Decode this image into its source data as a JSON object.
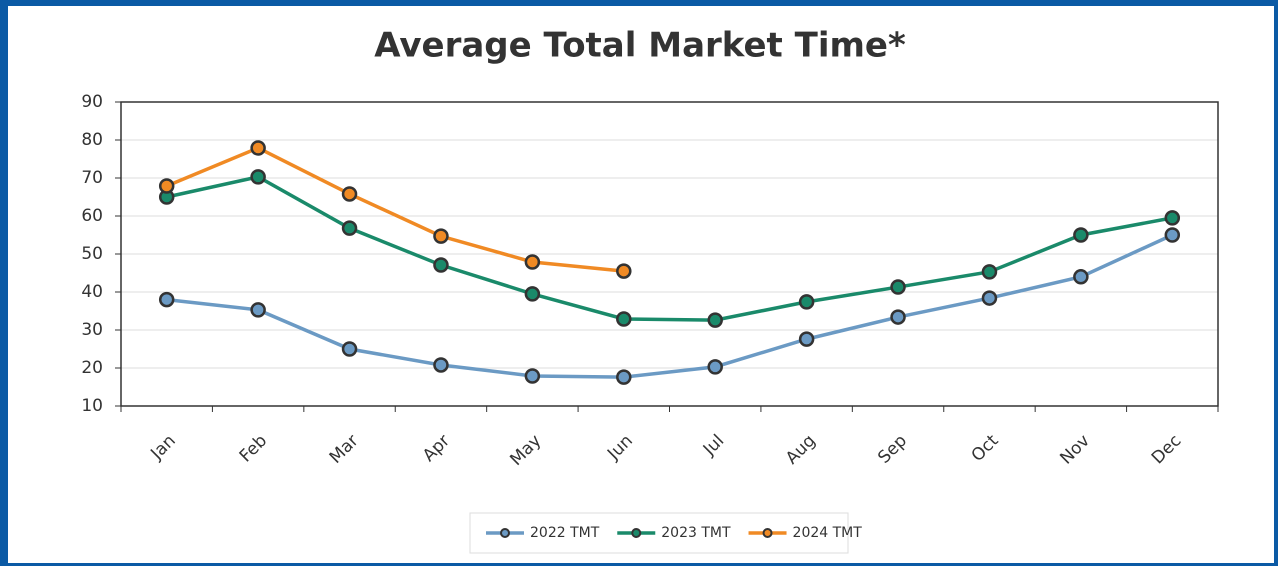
{
  "chart_data": {
    "type": "line",
    "title": "Average Total Market Time*",
    "categories": [
      "Jan",
      "Feb",
      "Mar",
      "Apr",
      "May",
      "Jun",
      "Jul",
      "Aug",
      "Sep",
      "Oct",
      "Nov",
      "Dec"
    ],
    "series": [
      {
        "name": "2022 TMT",
        "color": "#6b9ac4",
        "values": [
          38,
          35.3,
          25,
          20.8,
          17.9,
          17.6,
          20.3,
          27.6,
          33.4,
          38.4,
          44,
          55
        ]
      },
      {
        "name": "2023 TMT",
        "color": "#1a8a6a",
        "values": [
          65,
          70.3,
          56.8,
          47.1,
          39.5,
          32.9,
          32.6,
          37.4,
          41.3,
          45.3,
          55,
          59.5
        ]
      },
      {
        "name": "2024 TMT",
        "color": "#f08a24",
        "values": [
          67.9,
          77.9,
          65.8,
          54.7,
          47.9,
          45.5,
          null,
          null,
          null,
          null,
          null,
          null
        ]
      }
    ],
    "ylim": [
      10,
      90
    ],
    "yticks": [
      10,
      20,
      30,
      40,
      50,
      60,
      70,
      80,
      90
    ],
    "grid": true,
    "legend": "bottom"
  }
}
